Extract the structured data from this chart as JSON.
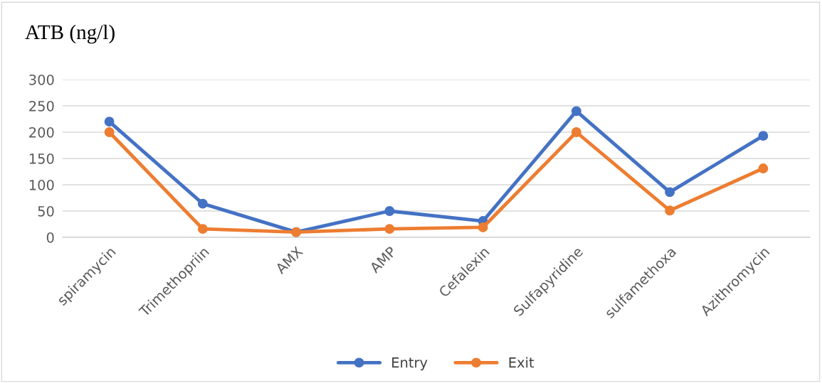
{
  "chart_data": {
    "type": "line",
    "title": "ATB (ng/l)",
    "categories": [
      "spiramycin",
      "Trimethopriin",
      "AMX",
      "AMP",
      "Cefalexin",
      "Sulfapyridine",
      "sulfamethoxa",
      "Azithromycin"
    ],
    "series": [
      {
        "name": "Entry",
        "color": "#4472c4",
        "values": [
          220,
          64,
          10,
          50,
          31,
          240,
          86,
          193
        ]
      },
      {
        "name": "Exit",
        "color": "#ed7d31",
        "values": [
          200,
          16,
          10,
          16,
          19,
          200,
          51,
          131
        ]
      }
    ],
    "ylim": [
      0,
      300
    ],
    "yticks": [
      0,
      50,
      100,
      150,
      200,
      250,
      300
    ],
    "grid": "y",
    "legend": "bottom",
    "marker": "circle",
    "line_style": "solid"
  }
}
